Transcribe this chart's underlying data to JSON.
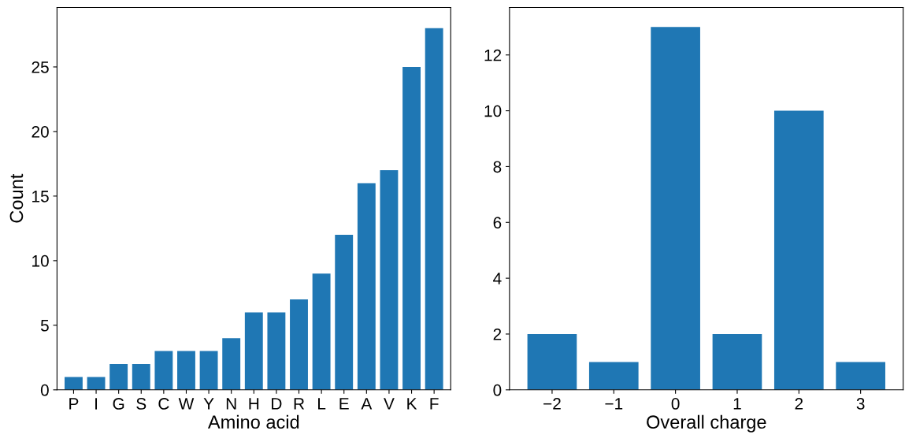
{
  "chart_data": [
    {
      "type": "bar",
      "xlabel": "Amino acid",
      "ylabel": "Count",
      "categories": [
        "P",
        "I",
        "G",
        "S",
        "C",
        "W",
        "Y",
        "N",
        "H",
        "D",
        "R",
        "L",
        "E",
        "A",
        "V",
        "K",
        "F"
      ],
      "values": [
        1,
        1,
        2,
        2,
        3,
        3,
        3,
        4,
        6,
        6,
        7,
        9,
        12,
        16,
        17,
        25,
        28
      ],
      "color": "#1f77b4",
      "ylim": [
        0,
        29.6
      ],
      "yticks": [
        0,
        5,
        10,
        15,
        20,
        25
      ],
      "grid": false,
      "legend": false
    },
    {
      "type": "bar",
      "xlabel": "Overall charge",
      "categories": [
        "−2",
        "−1",
        "0",
        "1",
        "2",
        "3"
      ],
      "values": [
        2,
        1,
        13,
        2,
        10,
        1
      ],
      "color": "#1f77b4",
      "ylim": [
        0,
        13.7
      ],
      "yticks": [
        0,
        2,
        4,
        6,
        8,
        10,
        12
      ],
      "grid": false,
      "legend": false
    }
  ]
}
